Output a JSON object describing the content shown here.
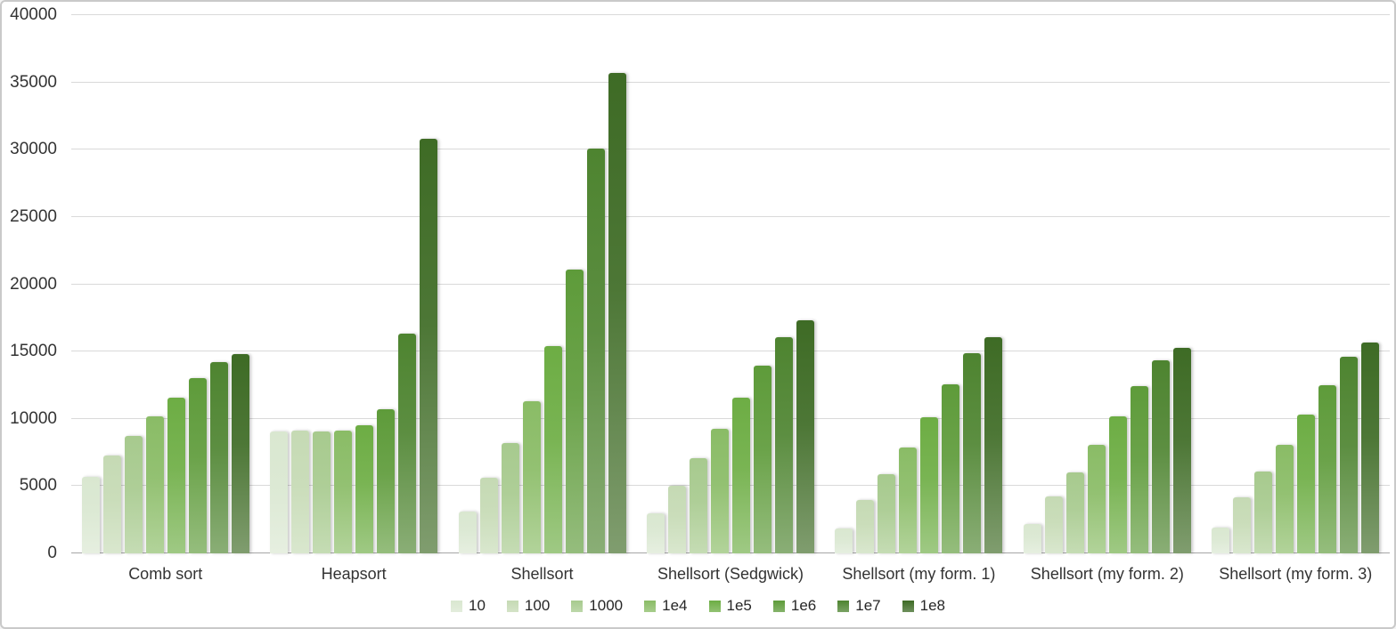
{
  "chart_data": {
    "type": "bar",
    "title": "",
    "xlabel": "",
    "ylabel": "",
    "categories": [
      "Comb sort",
      "Heapsort",
      "Shellsort",
      "Shellsort (Sedgwick)",
      "Shellsort (my form. 1)",
      "Shellsort (my form. 2)",
      "Shellsort (my form. 3)"
    ],
    "series": [
      {
        "name": "10",
        "color": "#d9e7d0",
        "values": [
          5700,
          9050,
          3100,
          2950,
          1850,
          2200,
          1900
        ]
      },
      {
        "name": "100",
        "color": "#c5dab4",
        "values": [
          7250,
          9100,
          5600,
          5050,
          3950,
          4200,
          4150
        ]
      },
      {
        "name": "1000",
        "color": "#a7ca8e",
        "values": [
          8700,
          9050,
          8200,
          7050,
          5900,
          6050,
          6100
        ]
      },
      {
        "name": "1e4",
        "color": "#8abc66",
        "values": [
          10200,
          9150,
          11300,
          9250,
          7900,
          8100,
          8100
        ]
      },
      {
        "name": "1e5",
        "color": "#6dad44",
        "values": [
          11550,
          9500,
          15400,
          11550,
          10100,
          10200,
          10300
        ]
      },
      {
        "name": "1e6",
        "color": "#5e9b3a",
        "values": [
          13000,
          10700,
          21100,
          13950,
          12550,
          12400,
          12500
        ]
      },
      {
        "name": "1e7",
        "color": "#4e8430",
        "values": [
          14200,
          16300,
          30100,
          16100,
          14900,
          14350,
          14600
        ]
      },
      {
        "name": "1e8",
        "color": "#3e6b25",
        "values": [
          14800,
          30800,
          35700,
          17350,
          16100,
          15300,
          15700
        ]
      }
    ],
    "ylim": [
      0,
      40000
    ],
    "y_ticks": [
      0,
      5000,
      10000,
      15000,
      20000,
      25000,
      30000,
      35000,
      40000
    ],
    "grid": "horizontal",
    "legend_position": "bottom",
    "colors": {
      "gridline": "#d9d9d9",
      "zero_axis": "#a6a6a6",
      "text": "#333333"
    }
  }
}
